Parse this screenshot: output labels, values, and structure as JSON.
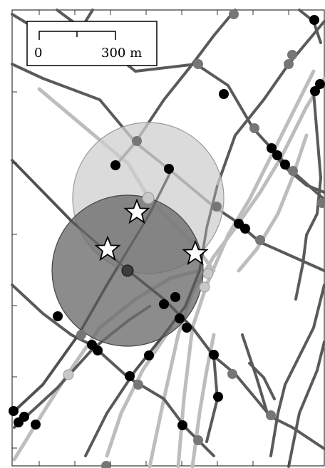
{
  "scale_bar": {
    "start_label": "0",
    "end_label": "300 m"
  },
  "legend_symbols": {
    "star": "star-marker",
    "black_dot": "black-node",
    "gray_dot": "gray-node",
    "light_dot": "light-node"
  },
  "colors": {
    "road_dark": "#555555",
    "road_light": "#bbbbbb",
    "node_black": "#000000",
    "node_gray": "#777777",
    "node_light": "#c0c0c0",
    "circle_light": "#cfcfcf",
    "circle_dark": "#6b6b6b",
    "star_fill": "#ffffff"
  }
}
